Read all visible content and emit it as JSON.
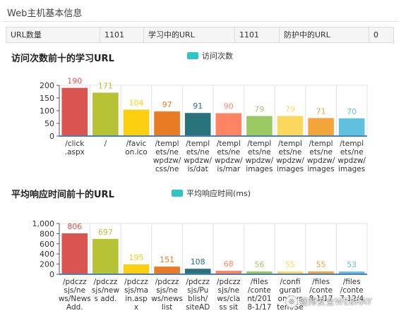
{
  "page_title": "Web主机基本信息",
  "stats": [
    {
      "label": "URL数量",
      "value": "1101"
    },
    {
      "label": "学习中的URL",
      "value": "1101"
    },
    {
      "label": "防护中的URL",
      "value": "0"
    }
  ],
  "chart_data": [
    {
      "type": "bar",
      "title": "访问次数前十的学习URL",
      "legend": "访问次数",
      "legend_color": "#2ec5c5",
      "yticks": [
        "0",
        "50",
        "100",
        "150",
        "200"
      ],
      "ylim": [
        0,
        200
      ],
      "grid": true,
      "categories": [
        [
          "/click",
          ".aspx"
        ],
        [
          "/"
        ],
        [
          "/favic",
          "on.ico"
        ],
        [
          "/templ",
          "ets/ne",
          "wpdzw/",
          "css/ne"
        ],
        [
          "/templ",
          "ets/ne",
          "wpdzw/",
          "is/dat"
        ],
        [
          "/templ",
          "ets/ne",
          "wpdzw/",
          "is/mar"
        ],
        [
          "/templ",
          "ets/ne",
          "wpdzw/",
          "images"
        ],
        [
          "/templ",
          "ets/ne",
          "wpdzw/",
          "images"
        ],
        [
          "/templ",
          "ets/ne",
          "wpdzw/",
          "images"
        ],
        [
          "/templ",
          "ets/ne",
          "wpdzw/",
          "images"
        ]
      ],
      "values": [
        190,
        171,
        104,
        97,
        91,
        90,
        79,
        79,
        71,
        70
      ],
      "labels": [
        "190",
        "171",
        "104",
        "97",
        "91",
        "90",
        "79",
        "79",
        "71",
        "70"
      ],
      "colors": [
        "#d9534f",
        "#b5c334",
        "#fcce10",
        "#e87c25",
        "#27727b",
        "#fe8463",
        "#9bca63",
        "#fad860",
        "#f3a43b",
        "#60c0dd"
      ]
    },
    {
      "type": "bar",
      "title": "平均响应时间前十的URL",
      "legend": "平均响应时间(ms)",
      "legend_color": "#2ec5c5",
      "yticks": [
        "0",
        "200",
        "400",
        "600",
        "800",
        "1,000"
      ],
      "ylim": [
        0,
        1000
      ],
      "grid": true,
      "categories": [
        [
          "/pdczz",
          "sjs/ne",
          "ws/News",
          "Add."
        ],
        [
          "/pdczz",
          "sjs/new",
          "s add."
        ],
        [
          "/pdczz",
          "sjs/ma",
          "in.asp",
          "x"
        ],
        [
          "/pdczz",
          "sjs/ne",
          "ws/news",
          "list"
        ],
        [
          "/pdczz",
          "sjs/Pu",
          "blish/",
          "siteAD"
        ],
        [
          "/pdczz",
          "sjs/ne",
          "ws/cla",
          "ss sit"
        ],
        [
          "/files",
          "/conte",
          "nt/201",
          "8-1/17"
        ],
        [
          "/confi",
          "gurati",
          "on/Sys",
          "tem/Se"
        ],
        [
          "/files",
          "/conte",
          "8-1/17"
        ],
        [
          "/files",
          "/conte",
          "7-12/4"
        ]
      ],
      "values": [
        806,
        697,
        195,
        151,
        108,
        68,
        56,
        55,
        55,
        53
      ],
      "labels": [
        "806",
        "697",
        "195",
        "151",
        "108",
        "68",
        "56",
        "55",
        "55",
        "53"
      ],
      "colors": [
        "#d9534f",
        "#b5c334",
        "#fcce10",
        "#e87c25",
        "#27727b",
        "#fe8463",
        "#9bca63",
        "#fad860",
        "#f3a43b",
        "#60c0dd"
      ]
    }
  ],
  "watermark": {
    "text": "盛邦安全WEBRAY",
    "icon": "logo-icon"
  }
}
